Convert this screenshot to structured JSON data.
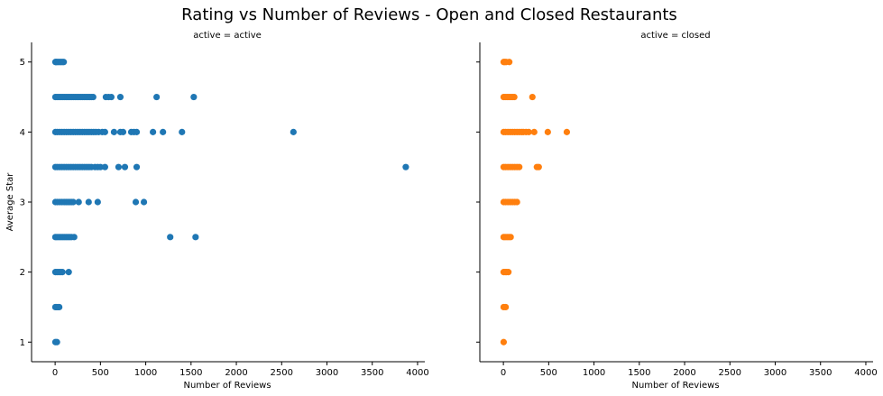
{
  "figure": {
    "title": "Rating vs Number of Reviews - Open and Closed Restaurants"
  },
  "chart_data": {
    "type": "scatter",
    "title": "Rating vs Number of Reviews - Open and Closed Restaurants",
    "ylabel": "Average Star",
    "xlim": [
      -260,
      4080
    ],
    "ylim": [
      0.72,
      5.28
    ],
    "x_ticks": [
      0,
      500,
      1000,
      1500,
      2000,
      2500,
      3000,
      3500,
      4000
    ],
    "y_ticks": [
      1,
      2,
      3,
      4,
      5
    ],
    "grid": false,
    "legend": "none",
    "panels": [
      {
        "title": "active = active",
        "xlabel": "Number of Reviews",
        "color": "#1f77b4",
        "points": [
          [
            3,
            5
          ],
          [
            10,
            5
          ],
          [
            20,
            5
          ],
          [
            35,
            5
          ],
          [
            50,
            5
          ],
          [
            65,
            5
          ],
          [
            80,
            5
          ],
          [
            95,
            5
          ],
          [
            3,
            4.5
          ],
          [
            20,
            4.5
          ],
          [
            40,
            4.5
          ],
          [
            60,
            4.5
          ],
          [
            80,
            4.5
          ],
          [
            100,
            4.5
          ],
          [
            120,
            4.5
          ],
          [
            140,
            4.5
          ],
          [
            160,
            4.5
          ],
          [
            180,
            4.5
          ],
          [
            200,
            4.5
          ],
          [
            220,
            4.5
          ],
          [
            240,
            4.5
          ],
          [
            260,
            4.5
          ],
          [
            280,
            4.5
          ],
          [
            300,
            4.5
          ],
          [
            320,
            4.5
          ],
          [
            340,
            4.5
          ],
          [
            360,
            4.5
          ],
          [
            380,
            4.5
          ],
          [
            400,
            4.5
          ],
          [
            420,
            4.5
          ],
          [
            560,
            4.5
          ],
          [
            590,
            4.5
          ],
          [
            620,
            4.5
          ],
          [
            720,
            4.5
          ],
          [
            1120,
            4.5
          ],
          [
            1530,
            4.5
          ],
          [
            3,
            4
          ],
          [
            25,
            4
          ],
          [
            50,
            4
          ],
          [
            75,
            4
          ],
          [
            100,
            4
          ],
          [
            125,
            4
          ],
          [
            150,
            4
          ],
          [
            175,
            4
          ],
          [
            200,
            4
          ],
          [
            225,
            4
          ],
          [
            250,
            4
          ],
          [
            275,
            4
          ],
          [
            300,
            4
          ],
          [
            325,
            4
          ],
          [
            350,
            4
          ],
          [
            375,
            4
          ],
          [
            400,
            4
          ],
          [
            425,
            4
          ],
          [
            450,
            4
          ],
          [
            480,
            4
          ],
          [
            520,
            4
          ],
          [
            550,
            4
          ],
          [
            650,
            4
          ],
          [
            720,
            4
          ],
          [
            750,
            4
          ],
          [
            840,
            4
          ],
          [
            870,
            4
          ],
          [
            900,
            4
          ],
          [
            1080,
            4
          ],
          [
            1190,
            4
          ],
          [
            1400,
            4
          ],
          [
            2630,
            4
          ],
          [
            3,
            3.5
          ],
          [
            25,
            3.5
          ],
          [
            50,
            3.5
          ],
          [
            75,
            3.5
          ],
          [
            100,
            3.5
          ],
          [
            125,
            3.5
          ],
          [
            150,
            3.5
          ],
          [
            175,
            3.5
          ],
          [
            200,
            3.5
          ],
          [
            225,
            3.5
          ],
          [
            250,
            3.5
          ],
          [
            275,
            3.5
          ],
          [
            300,
            3.5
          ],
          [
            325,
            3.5
          ],
          [
            350,
            3.5
          ],
          [
            375,
            3.5
          ],
          [
            400,
            3.5
          ],
          [
            440,
            3.5
          ],
          [
            470,
            3.5
          ],
          [
            500,
            3.5
          ],
          [
            550,
            3.5
          ],
          [
            700,
            3.5
          ],
          [
            770,
            3.5
          ],
          [
            900,
            3.5
          ],
          [
            3870,
            3.5
          ],
          [
            3,
            3
          ],
          [
            25,
            3
          ],
          [
            50,
            3
          ],
          [
            75,
            3
          ],
          [
            100,
            3
          ],
          [
            120,
            3
          ],
          [
            140,
            3
          ],
          [
            160,
            3
          ],
          [
            180,
            3
          ],
          [
            200,
            3
          ],
          [
            260,
            3
          ],
          [
            370,
            3
          ],
          [
            470,
            3
          ],
          [
            890,
            3
          ],
          [
            980,
            3
          ],
          [
            3,
            2.5
          ],
          [
            20,
            2.5
          ],
          [
            40,
            2.5
          ],
          [
            60,
            2.5
          ],
          [
            80,
            2.5
          ],
          [
            100,
            2.5
          ],
          [
            120,
            2.5
          ],
          [
            140,
            2.5
          ],
          [
            160,
            2.5
          ],
          [
            180,
            2.5
          ],
          [
            210,
            2.5
          ],
          [
            1270,
            2.5
          ],
          [
            1550,
            2.5
          ],
          [
            3,
            2
          ],
          [
            20,
            2
          ],
          [
            40,
            2
          ],
          [
            60,
            2
          ],
          [
            80,
            2
          ],
          [
            150,
            2
          ],
          [
            3,
            1.5
          ],
          [
            15,
            1.5
          ],
          [
            30,
            1.5
          ],
          [
            45,
            1.5
          ],
          [
            3,
            1
          ],
          [
            20,
            1
          ]
        ]
      },
      {
        "title": "active = closed",
        "xlabel": "Number of Reviews",
        "color": "#ff7f0e",
        "points": [
          [
            3,
            5
          ],
          [
            15,
            5
          ],
          [
            30,
            5
          ],
          [
            65,
            5
          ],
          [
            3,
            4.5
          ],
          [
            20,
            4.5
          ],
          [
            40,
            4.5
          ],
          [
            60,
            4.5
          ],
          [
            80,
            4.5
          ],
          [
            100,
            4.5
          ],
          [
            120,
            4.5
          ],
          [
            320,
            4.5
          ],
          [
            3,
            4
          ],
          [
            25,
            4
          ],
          [
            50,
            4
          ],
          [
            75,
            4
          ],
          [
            100,
            4
          ],
          [
            125,
            4
          ],
          [
            150,
            4
          ],
          [
            175,
            4
          ],
          [
            200,
            4
          ],
          [
            220,
            4
          ],
          [
            250,
            4
          ],
          [
            280,
            4
          ],
          [
            340,
            4
          ],
          [
            490,
            4
          ],
          [
            700,
            4
          ],
          [
            3,
            3.5
          ],
          [
            25,
            3.5
          ],
          [
            50,
            3.5
          ],
          [
            75,
            3.5
          ],
          [
            100,
            3.5
          ],
          [
            125,
            3.5
          ],
          [
            150,
            3.5
          ],
          [
            175,
            3.5
          ],
          [
            370,
            3.5
          ],
          [
            390,
            3.5
          ],
          [
            3,
            3
          ],
          [
            25,
            3
          ],
          [
            50,
            3
          ],
          [
            75,
            3
          ],
          [
            100,
            3
          ],
          [
            125,
            3
          ],
          [
            150,
            3
          ],
          [
            3,
            2.5
          ],
          [
            20,
            2.5
          ],
          [
            40,
            2.5
          ],
          [
            60,
            2.5
          ],
          [
            80,
            2.5
          ],
          [
            3,
            2
          ],
          [
            20,
            2
          ],
          [
            35,
            2
          ],
          [
            55,
            2
          ],
          [
            3,
            1.5
          ],
          [
            25,
            1.5
          ],
          [
            3,
            1
          ]
        ]
      }
    ]
  }
}
